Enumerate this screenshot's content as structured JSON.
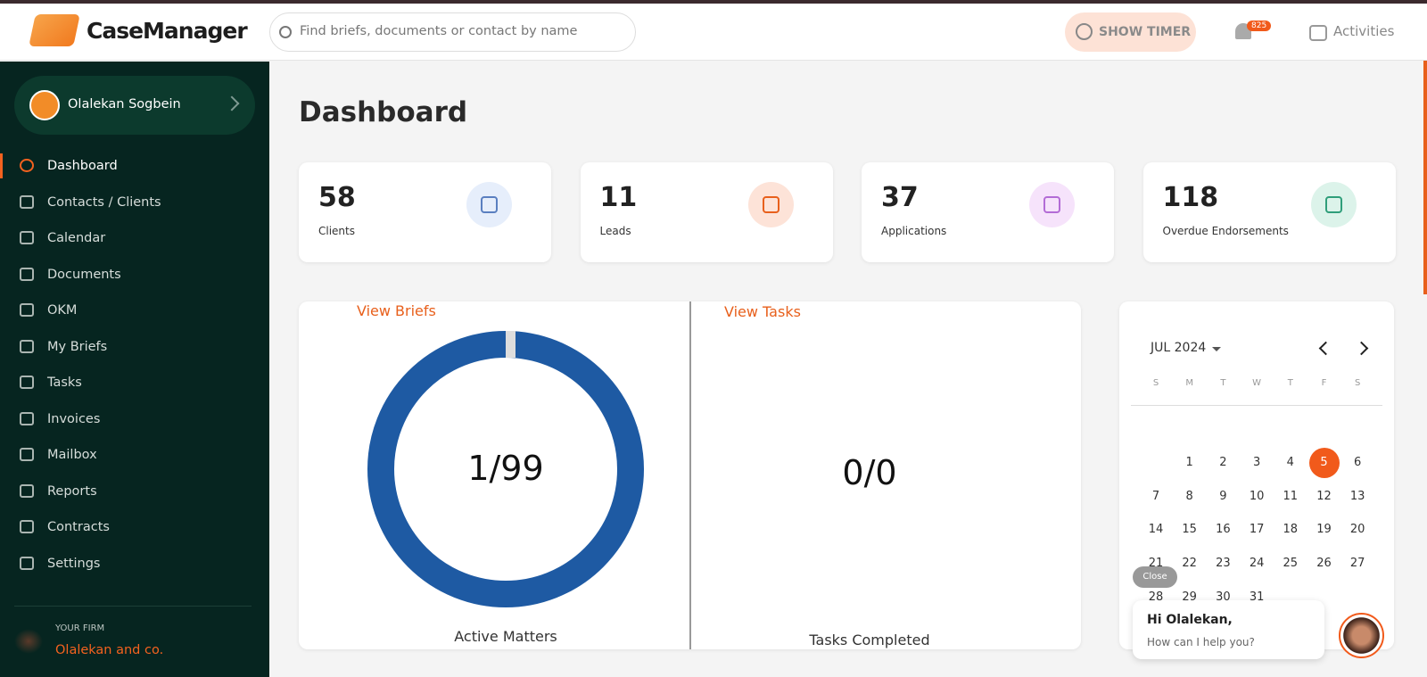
{
  "header": {
    "logo": "CaseManager",
    "search_placeholder": "Find briefs, documents or contact by name",
    "timer": "SHOW TIMER",
    "notifications": 825,
    "activities": "Activities"
  },
  "sidebar": {
    "user": "Olalekan Sogbein",
    "menu": [
      "Dashboard",
      "Contacts / Clients",
      "Calendar",
      "Documents",
      "OKM",
      "My Briefs",
      "Tasks",
      "Invoices",
      "Mailbox",
      "Reports",
      "Contracts",
      "Settings"
    ],
    "firm_label": "YOUR FIRM",
    "firm": "Olalekan and co."
  },
  "page_title": "Dashboard",
  "stats": [
    {
      "value": 58,
      "label": "Clients"
    },
    {
      "value": 11,
      "label": "Leads"
    },
    {
      "value": 37,
      "label": "Applications"
    },
    {
      "value": 118,
      "label": "Overdue Endorsements"
    }
  ],
  "briefs": {
    "link": "View Briefs",
    "value": "1/99",
    "caption": "Active Matters"
  },
  "tasks": {
    "link": "View Tasks",
    "value": "0/0",
    "caption": "Tasks Completed"
  },
  "calendar": {
    "month": "JUL 2024",
    "weekdays": [
      "S",
      "M",
      "T",
      "W",
      "T",
      "F",
      "S"
    ],
    "days": [
      1,
      2,
      3,
      4,
      5,
      6,
      7,
      8,
      9,
      10,
      11,
      12,
      13,
      14,
      15,
      16,
      17,
      18,
      19,
      20,
      21,
      22,
      23,
      24,
      25,
      26,
      27,
      28,
      29,
      30,
      31
    ],
    "selected": 5
  },
  "chat": {
    "close": "Close",
    "greeting": "Hi Olalekan,",
    "prompt": "How can I help you?"
  }
}
